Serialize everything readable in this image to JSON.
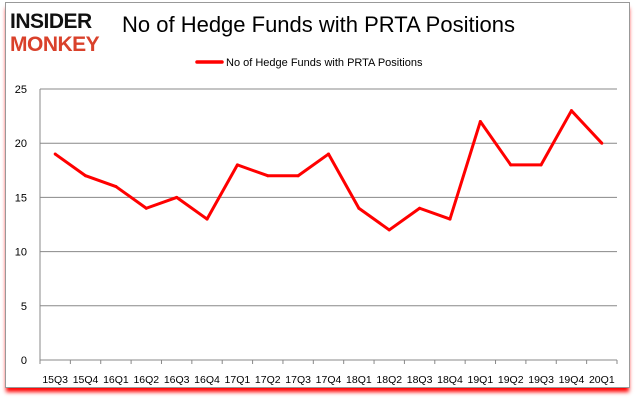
{
  "logo": {
    "line1": "INSIDER",
    "line2": "MONKEY"
  },
  "chart_data": {
    "type": "line",
    "title": "No of Hedge Funds with PRTA Positions",
    "categories": [
      "15Q3",
      "15Q4",
      "16Q1",
      "16Q2",
      "16Q3",
      "16Q4",
      "17Q1",
      "17Q2",
      "17Q3",
      "17Q4",
      "18Q1",
      "18Q2",
      "18Q3",
      "18Q4",
      "19Q1",
      "19Q2",
      "19Q3",
      "19Q4",
      "20Q1"
    ],
    "series": [
      {
        "name": "No of Hedge Funds with PRTA Positions",
        "values": [
          19,
          17,
          16,
          14,
          15,
          13,
          18,
          17,
          17,
          19,
          14,
          12,
          14,
          13,
          22,
          18,
          18,
          23,
          20
        ],
        "color": "#ff0000"
      }
    ],
    "ylim": [
      0,
      25
    ],
    "yticks": [
      0,
      5,
      10,
      15,
      20,
      25
    ],
    "grid": true,
    "legend": "top-center"
  }
}
